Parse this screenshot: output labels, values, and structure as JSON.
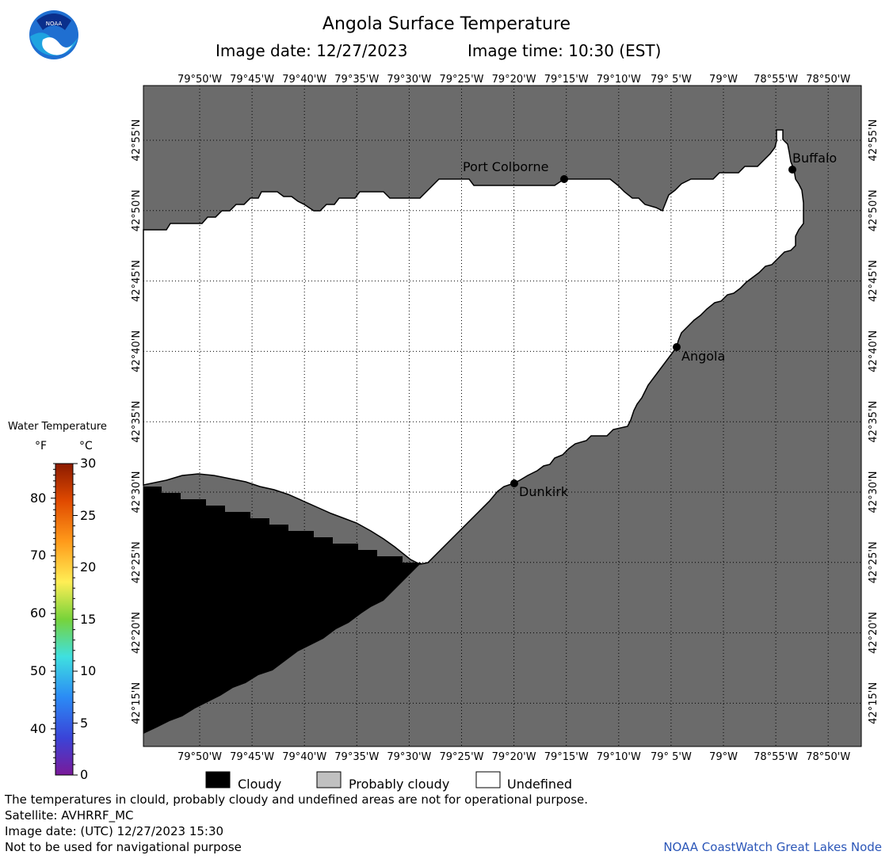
{
  "header": {
    "title": "Angola Surface Temperature",
    "image_date": "Image date: 12/27/2023",
    "image_time": "Image time: 10:30 (EST)"
  },
  "logo": {
    "text": "NOAA"
  },
  "map": {
    "lon_labels": [
      "79°50'W",
      "79°45'W",
      "79°40'W",
      "79°35'W",
      "79°30'W",
      "79°25'W",
      "79°20'W",
      "79°15'W",
      "79°10'W",
      "79° 5'W",
      "79°W",
      "78°55'W",
      "78°50'W"
    ],
    "lat_labels": [
      "42°55'N",
      "42°50'N",
      "42°45'N",
      "42°40'N",
      "42°35'N",
      "42°30'N",
      "42°25'N",
      "42°20'N",
      "42°15'N"
    ],
    "cities": [
      {
        "name": "Port Colborne"
      },
      {
        "name": "Buffalo"
      },
      {
        "name": "Angola"
      },
      {
        "name": "Dunkirk"
      }
    ],
    "colors": {
      "land": "#6b6b6b",
      "cloud": "#000000",
      "undefined": "#ffffff",
      "grid": "#000000"
    }
  },
  "colorbar": {
    "title": "Water Temperature",
    "unit_f": "°F",
    "unit_c": "°C",
    "f_ticks": [
      "80",
      "70",
      "60",
      "50",
      "40"
    ],
    "c_ticks": [
      "30",
      "25",
      "20",
      "15",
      "10",
      "5",
      "0"
    ]
  },
  "legend": {
    "cloudy": "Cloudy",
    "probably_cloudy": "Probably cloudy",
    "undefined": "Undefined"
  },
  "footer": {
    "line1": "The temperatures in clould, probably cloudy and undefined areas are not for operational purpose.",
    "line2": "Satellite: AVHRRF_MC",
    "line3": "Image date: (UTC) 12/27/2023  15:30",
    "line4": "Not to be used for navigational purpose",
    "credit": "NOAA CoastWatch Great Lakes Node"
  }
}
